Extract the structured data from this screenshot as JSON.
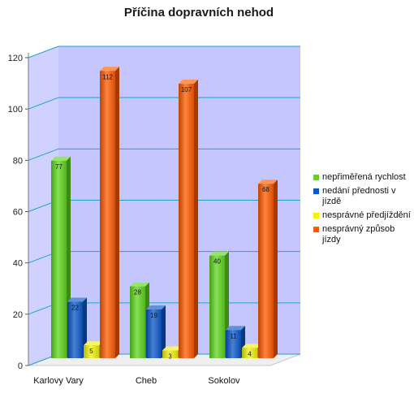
{
  "chart_data": {
    "type": "bar",
    "title": "Příčina dopravních nehod",
    "categories": [
      "Karlovy Vary",
      "Cheb",
      "Sokolov"
    ],
    "series": [
      {
        "name": "nepřiměřená rychlost",
        "values": [
          77,
          28,
          40
        ],
        "color": "#5fd61e",
        "value_labels": [
          "77",
          "28",
          "40"
        ]
      },
      {
        "name": "nedání přednosti v jízdě",
        "values": [
          22,
          19,
          11
        ],
        "color": "#0a57c9",
        "value_labels": [
          "22",
          "19",
          "11"
        ]
      },
      {
        "name": "nesprávné předjíždění",
        "values": [
          5,
          3,
          4
        ],
        "color": "#f2f20a",
        "value_labels": [
          "5",
          "3",
          "4"
        ]
      },
      {
        "name": "nesprávný způsob jízdy",
        "values": [
          112,
          107,
          68
        ],
        "color": "#ff5a00",
        "value_labels": [
          "112",
          "107",
          "68"
        ]
      }
    ],
    "ylim": [
      0,
      120
    ],
    "yticks": [
      0,
      20,
      40,
      60,
      80,
      100,
      120
    ],
    "xlabel": "",
    "ylabel": "",
    "grid": true,
    "legend_position": "right",
    "wall_color": "#c6c6ff",
    "grid_color": "#17a6cc",
    "floor_color": "#efefef"
  }
}
